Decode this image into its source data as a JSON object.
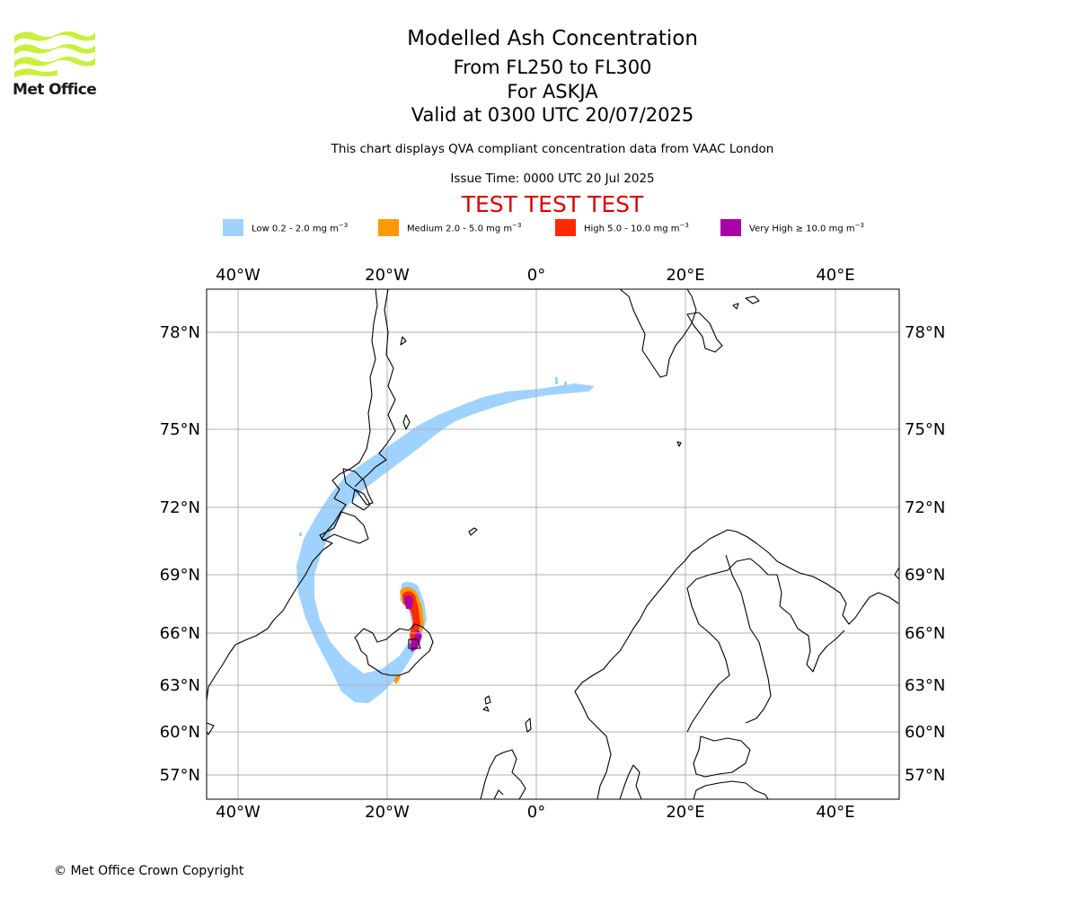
{
  "header": {
    "logo_text": "Met Office",
    "title": "Modelled Ash Concentration",
    "levels": "From FL250 to FL300",
    "volcano": "For ASKJA",
    "valid": "Valid at 0300 UTC 20/07/2025",
    "description": "This chart displays QVA compliant concentration data from VAAC London",
    "issue_time": "Issue Time: 0000 UTC 20 Jul 2025",
    "test_banner": "TEST TEST TEST"
  },
  "legend": [
    {
      "label": "Low 0.2 - 2.0 mg m",
      "unit_sup": "−3",
      "color": "#a0d2ff"
    },
    {
      "label": "Medium 2.0 - 5.0 mg m",
      "unit_sup": "−3",
      "color": "#ff9900"
    },
    {
      "label": "High 5.0 - 10.0 mg m",
      "unit_sup": "−3",
      "color": "#ff2a00"
    },
    {
      "label": "Very High  ≥  10.0 mg m",
      "unit_sup": "−3",
      "color": "#aa00aa"
    }
  ],
  "map": {
    "longitude_labels": [
      "40°W",
      "20°W",
      "0°",
      "20°E",
      "40°E"
    ],
    "latitude_labels": [
      "78°N",
      "75°N",
      "72°N",
      "69°N",
      "66°N",
      "63°N",
      "60°N",
      "57°N"
    ],
    "colors": {
      "coast": "#000000",
      "grid": "#b0b0b0",
      "banner": "#dd0000"
    }
  },
  "footer": {
    "copyright": "© Met Office Crown Copyright"
  }
}
